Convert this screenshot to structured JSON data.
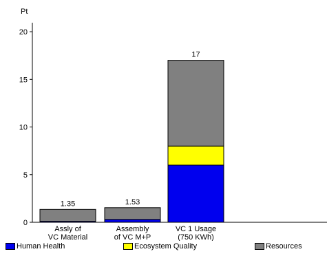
{
  "chart_data": {
    "type": "bar",
    "stacked": true,
    "ylabel": "Pt",
    "ylim": [
      0,
      21
    ],
    "yticks": [
      0,
      5,
      10,
      15,
      20
    ],
    "categories": [
      [
        "Assly of",
        "VC Material"
      ],
      [
        "Assembly",
        "of VC M+P"
      ],
      [
        "VC 1 Usage",
        "(750 KWh)"
      ]
    ],
    "totals_labels": [
      "1.35",
      "1.53",
      "17"
    ],
    "series": [
      {
        "name": "Human Health",
        "color": "#0000EE",
        "values": [
          0.1,
          0.3,
          6.0
        ]
      },
      {
        "name": "Ecosystem Quality",
        "color": "#FFFF00",
        "values": [
          0.0,
          0.0,
          2.0
        ]
      },
      {
        "name": "Resources",
        "color": "#808080",
        "values": [
          1.25,
          1.23,
          9.0
        ]
      }
    ],
    "legend_position": "bottom"
  }
}
